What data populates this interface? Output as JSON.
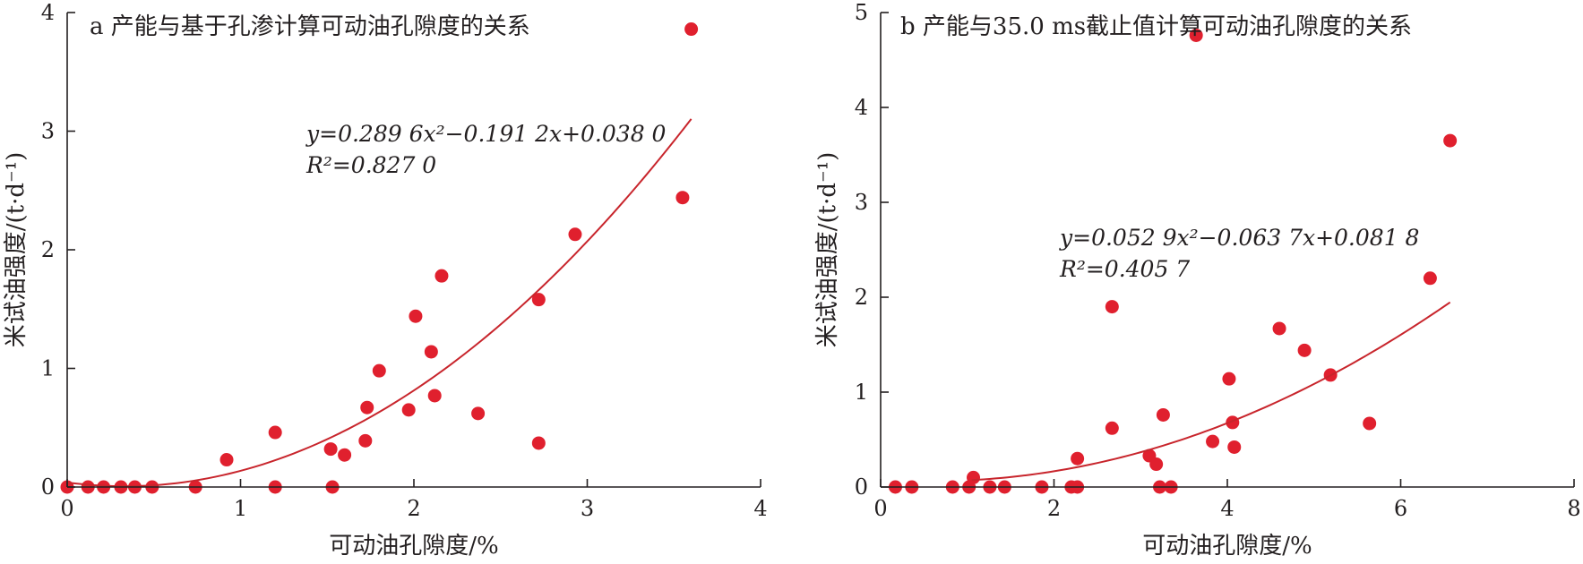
{
  "chart_data": [
    {
      "type": "scatter",
      "title": "a 产能与基于孔渗计算可动油孔隙度的关系",
      "xlabel": "可动油孔隙度/%",
      "ylabel": "米试油强度/(t·d⁻¹)",
      "xlim": [
        0,
        4
      ],
      "ylim": [
        0,
        4
      ],
      "xticks": [
        0,
        1,
        2,
        3,
        4
      ],
      "yticks": [
        0,
        1,
        2,
        3,
        4
      ],
      "xtick_labels": [
        "0",
        "1",
        "2",
        "3",
        "4"
      ],
      "ytick_labels": [
        "0",
        "1",
        "2",
        "3",
        "4"
      ],
      "equation": "y=0.289 6x²−0.191 2x+0.038 0",
      "r2": "R²=0.827 0",
      "fit": {
        "a": 0.2896,
        "b": -0.1912,
        "c": 0.038,
        "x_range": [
          0,
          3.6
        ]
      },
      "points": [
        [
          0.0,
          0.0
        ],
        [
          0.12,
          0.0
        ],
        [
          0.21,
          0.0
        ],
        [
          0.31,
          0.0
        ],
        [
          0.39,
          0.0
        ],
        [
          0.49,
          0.0
        ],
        [
          0.74,
          0.0
        ],
        [
          0.92,
          0.23
        ],
        [
          1.2,
          0.46
        ],
        [
          1.2,
          0.0
        ],
        [
          1.53,
          0.0
        ],
        [
          1.52,
          0.32
        ],
        [
          1.6,
          0.27
        ],
        [
          1.72,
          0.39
        ],
        [
          1.73,
          0.67
        ],
        [
          1.8,
          0.98
        ],
        [
          1.97,
          0.65
        ],
        [
          2.01,
          1.44
        ],
        [
          2.1,
          1.14
        ],
        [
          2.12,
          0.77
        ],
        [
          2.16,
          1.78
        ],
        [
          2.37,
          0.62
        ],
        [
          2.72,
          1.58
        ],
        [
          2.72,
          0.37
        ],
        [
          2.93,
          2.13
        ],
        [
          3.55,
          2.44
        ],
        [
          3.6,
          3.86
        ]
      ],
      "colors": {
        "point": "#e0202e",
        "trend": "#c8252c"
      }
    },
    {
      "type": "scatter",
      "title": "b 产能与35.0 ms截止值计算可动油孔隙度的关系",
      "xlabel": "可动油孔隙度/%",
      "ylabel": "米试油强度/(t·d⁻¹)",
      "xlim": [
        0,
        8
      ],
      "ylim": [
        0,
        5
      ],
      "xticks": [
        0,
        2,
        4,
        6,
        8
      ],
      "yticks": [
        0,
        1,
        2,
        3,
        4,
        5
      ],
      "xtick_labels": [
        "0",
        "2",
        "4",
        "6",
        "8"
      ],
      "ytick_labels": [
        "0",
        "1",
        "2",
        "3",
        "4",
        "5"
      ],
      "equation": "y=0.052 9x²−0.063 7x+0.081 8",
      "r2": "R²=0.405 7",
      "fit": {
        "a": 0.0529,
        "b": -0.0637,
        "c": 0.0818,
        "x_range": [
          1.05,
          6.57
        ]
      },
      "points": [
        [
          0.17,
          0.0
        ],
        [
          0.36,
          0.0
        ],
        [
          0.83,
          0.0
        ],
        [
          1.02,
          0.0
        ],
        [
          1.07,
          0.1
        ],
        [
          1.26,
          0.0
        ],
        [
          1.43,
          0.0
        ],
        [
          1.86,
          0.0
        ],
        [
          2.2,
          0.0
        ],
        [
          2.27,
          0.0
        ],
        [
          2.27,
          0.3
        ],
        [
          2.67,
          0.62
        ],
        [
          2.67,
          1.9
        ],
        [
          3.1,
          0.33
        ],
        [
          3.18,
          0.24
        ],
        [
          3.22,
          0.0
        ],
        [
          3.26,
          0.76
        ],
        [
          3.35,
          0.0
        ],
        [
          3.64,
          4.76
        ],
        [
          3.83,
          0.48
        ],
        [
          4.02,
          1.14
        ],
        [
          4.06,
          0.68
        ],
        [
          4.08,
          0.42
        ],
        [
          4.6,
          1.67
        ],
        [
          4.89,
          1.44
        ],
        [
          5.19,
          1.18
        ],
        [
          5.64,
          0.67
        ],
        [
          6.34,
          2.2
        ],
        [
          6.57,
          3.65
        ]
      ],
      "colors": {
        "point": "#e0202e",
        "trend": "#c8252c"
      }
    }
  ]
}
